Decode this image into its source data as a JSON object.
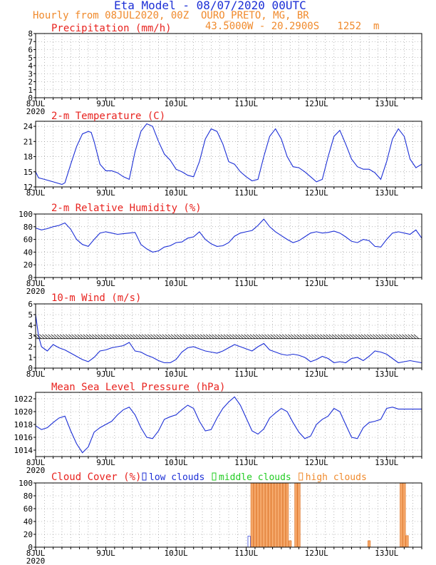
{
  "header": {
    "title": "Eta Model - 08/07/2020 00UTC",
    "line2": "Hourly from 08JUL2020, 00Z  OURO_PRETO, MG, BR",
    "line3": "43.5000W - 20.2900S   1252  m"
  },
  "colors": {
    "title": "#1c2fd6",
    "header_orange": "#f08a2c",
    "panel_title": "#e8231f",
    "series_blue": "#1c2fd6",
    "grid": "#888888",
    "high_clouds": "#f5a86a",
    "high_clouds_edge": "#e07a30",
    "low_clouds": "#1c2fd6",
    "middle_clouds": "#22cc22",
    "axis": "#000000"
  },
  "x_axis": {
    "labels": [
      "8JUL",
      "9JUL",
      "10JUL",
      "11JUL",
      "12JUL",
      "13JUL"
    ],
    "year_label": "2020",
    "range_hours": [
      0,
      132
    ]
  },
  "chart_data": [
    {
      "id": "precipitation",
      "type": "line",
      "title": "Precipitation (mm/h)",
      "ylim": [
        0,
        8
      ],
      "yticks": [
        0,
        1,
        2,
        3,
        4,
        5,
        6,
        7,
        8
      ],
      "series": [
        {
          "name": "Precipitation",
          "x": [
            0,
            132
          ],
          "values": [
            0,
            0
          ]
        }
      ]
    },
    {
      "id": "temperature",
      "type": "line",
      "title": "2-m Temperature (C)",
      "ylim": [
        12,
        25
      ],
      "yticks": [
        12,
        15,
        18,
        21,
        24
      ],
      "series": [
        {
          "name": "Temperature",
          "x": [
            0,
            1,
            3,
            6,
            9,
            10,
            12,
            14,
            16,
            18,
            19,
            20,
            22,
            24,
            26,
            28,
            30,
            32,
            34,
            36,
            38,
            40,
            42,
            44,
            46,
            48,
            50,
            52,
            54,
            56,
            58,
            60,
            62,
            64,
            66,
            68,
            70,
            72,
            74,
            76,
            78,
            80,
            82,
            84,
            86,
            88,
            90,
            92,
            94,
            96,
            98,
            100,
            102,
            104,
            106,
            108,
            110,
            112,
            114,
            116,
            118,
            120,
            122,
            124,
            126,
            128,
            130,
            132
          ],
          "values": [
            15,
            13.8,
            13.5,
            13.0,
            12.5,
            12.8,
            16.5,
            20.0,
            22.5,
            23.0,
            22.8,
            21.0,
            16.5,
            15.2,
            15.2,
            14.8,
            14.0,
            13.5,
            19.0,
            23.0,
            24.5,
            24.0,
            21.0,
            18.5,
            17.3,
            15.5,
            15.0,
            14.3,
            14.0,
            17.0,
            21.5,
            23.5,
            23.0,
            20.5,
            17.0,
            16.5,
            15.0,
            14.0,
            13.2,
            13.5,
            18.0,
            22.0,
            23.5,
            21.5,
            18.0,
            16.0,
            15.8,
            15.0,
            14.0,
            13.0,
            13.5,
            18.0,
            22.0,
            23.2,
            20.5,
            17.5,
            16.0,
            15.5,
            15.5,
            14.8,
            13.5,
            17.0,
            21.5,
            23.5,
            22.0,
            17.5,
            15.8,
            16.5
          ]
        }
      ]
    },
    {
      "id": "humidity",
      "type": "line",
      "title": "2-m Relative Humidity (%)",
      "ylim": [
        0,
        100
      ],
      "yticks": [
        0,
        20,
        40,
        60,
        80,
        100
      ],
      "series": [
        {
          "name": "Relative Humidity",
          "x": [
            0,
            2,
            4,
            6,
            8,
            10,
            12,
            14,
            16,
            18,
            20,
            22,
            24,
            26,
            28,
            30,
            32,
            34,
            36,
            38,
            40,
            42,
            44,
            46,
            48,
            50,
            52,
            54,
            56,
            58,
            60,
            62,
            64,
            66,
            68,
            70,
            72,
            74,
            76,
            78,
            80,
            82,
            84,
            86,
            88,
            90,
            92,
            94,
            96,
            98,
            100,
            102,
            104,
            106,
            108,
            110,
            112,
            114,
            116,
            118,
            120,
            122,
            124,
            126,
            128,
            130,
            132
          ],
          "values": [
            78,
            75,
            77,
            80,
            82,
            86,
            76,
            60,
            52,
            49,
            60,
            70,
            72,
            70,
            68,
            69,
            70,
            71,
            52,
            45,
            40,
            42,
            48,
            50,
            55,
            56,
            62,
            64,
            72,
            60,
            53,
            49,
            50,
            55,
            65,
            70,
            72,
            74,
            82,
            92,
            80,
            72,
            66,
            60,
            55,
            58,
            64,
            70,
            72,
            70,
            71,
            73,
            70,
            64,
            57,
            55,
            60,
            58,
            49,
            48,
            60,
            70,
            72,
            70,
            68,
            75,
            62
          ]
        }
      ]
    },
    {
      "id": "wind",
      "type": "line",
      "title": "10-m Wind (m/s)",
      "ylim": [
        0,
        6
      ],
      "yticks": [
        0,
        1,
        2,
        3,
        4,
        5,
        6
      ],
      "series": [
        {
          "name": "Wind speed",
          "x": [
            0,
            1,
            2,
            4,
            6,
            8,
            10,
            12,
            14,
            16,
            18,
            20,
            22,
            24,
            26,
            28,
            30,
            32,
            34,
            36,
            38,
            40,
            42,
            44,
            46,
            48,
            50,
            52,
            54,
            56,
            58,
            60,
            62,
            64,
            66,
            68,
            70,
            72,
            74,
            76,
            78,
            80,
            82,
            84,
            86,
            88,
            90,
            92,
            94,
            96,
            98,
            100,
            102,
            104,
            106,
            108,
            110,
            112,
            114,
            116,
            118,
            120,
            122,
            124,
            126,
            128,
            130,
            132
          ],
          "values": [
            5.0,
            3.0,
            2.0,
            1.6,
            2.2,
            1.9,
            1.7,
            1.4,
            1.1,
            0.8,
            0.6,
            1.0,
            1.6,
            1.7,
            1.9,
            2.0,
            2.1,
            2.4,
            1.6,
            1.5,
            1.2,
            1.0,
            0.7,
            0.5,
            0.5,
            0.8,
            1.5,
            1.9,
            2.0,
            1.8,
            1.6,
            1.5,
            1.4,
            1.6,
            1.9,
            2.2,
            2.0,
            1.8,
            1.6,
            2.0,
            2.3,
            1.7,
            1.5,
            1.3,
            1.2,
            1.3,
            1.2,
            1.0,
            0.6,
            0.8,
            1.1,
            0.9,
            0.5,
            0.6,
            0.5,
            0.9,
            1.0,
            0.7,
            1.1,
            1.6,
            1.5,
            1.3,
            0.9,
            0.5,
            0.6,
            0.7,
            0.6,
            0.5
          ]
        }
      ],
      "barbs": {
        "baseline": 2.75,
        "interval_hours": 1
      }
    },
    {
      "id": "pressure",
      "type": "line",
      "title": "Mean Sea Level Pressure (hPa)",
      "ylim": [
        1013,
        1023
      ],
      "yticks": [
        1014,
        1016,
        1018,
        1020,
        1022
      ],
      "series": [
        {
          "name": "MSLP",
          "x": [
            0,
            2,
            4,
            6,
            8,
            10,
            12,
            14,
            16,
            18,
            20,
            22,
            24,
            26,
            28,
            30,
            32,
            34,
            36,
            38,
            40,
            42,
            44,
            46,
            48,
            50,
            52,
            54,
            56,
            58,
            60,
            62,
            64,
            66,
            68,
            70,
            72,
            74,
            76,
            78,
            80,
            82,
            84,
            86,
            88,
            90,
            92,
            94,
            96,
            98,
            100,
            102,
            104,
            106,
            108,
            110,
            112,
            114,
            116,
            118,
            120,
            122,
            124,
            126,
            128,
            130,
            132
          ],
          "values": [
            1017.8,
            1017.2,
            1017.5,
            1018.3,
            1019.0,
            1019.3,
            1017.0,
            1015.0,
            1013.6,
            1014.5,
            1016.8,
            1017.5,
            1018.0,
            1018.5,
            1019.5,
            1020.3,
            1020.7,
            1019.5,
            1017.5,
            1016.0,
            1015.8,
            1017.0,
            1018.8,
            1019.2,
            1019.5,
            1020.3,
            1021.0,
            1020.5,
            1018.5,
            1017.0,
            1017.2,
            1019.0,
            1020.5,
            1021.5,
            1022.3,
            1021.0,
            1019.0,
            1017.0,
            1016.5,
            1017.3,
            1019.0,
            1019.8,
            1020.5,
            1020.0,
            1018.3,
            1016.8,
            1015.8,
            1016.2,
            1018.0,
            1018.8,
            1019.3,
            1020.5,
            1020.0,
            1018.0,
            1016.0,
            1015.8,
            1017.5,
            1018.3,
            1018.5,
            1018.8,
            1020.5,
            1020.7,
            1020.4,
            1020.4,
            1020.4,
            1020.4,
            1020.4
          ]
        }
      ]
    },
    {
      "id": "cloud",
      "type": "bar",
      "title": "Cloud Cover (%)",
      "legend": [
        {
          "label": "low clouds",
          "color": "#1c2fd6"
        },
        {
          "label": "middle clouds",
          "color": "#22cc22"
        },
        {
          "label": "high clouds",
          "color": "#f08a2c"
        }
      ],
      "ylim": [
        0,
        100
      ],
      "yticks": [
        0,
        20,
        40,
        60,
        80,
        100
      ],
      "series": [
        {
          "name": "low clouds",
          "bars": [
            [
              73,
              17
            ],
            [
              74,
              17
            ]
          ]
        },
        {
          "name": "middle clouds",
          "bars": []
        },
        {
          "name": "high clouds",
          "bars": [
            [
              74,
              100
            ],
            [
              75,
              100
            ],
            [
              76,
              100
            ],
            [
              77,
              100
            ],
            [
              78,
              100
            ],
            [
              79,
              100
            ],
            [
              80,
              100
            ],
            [
              81,
              100
            ],
            [
              82,
              100
            ],
            [
              83,
              100
            ],
            [
              84,
              100
            ],
            [
              85,
              100
            ],
            [
              86,
              100
            ],
            [
              87,
              10
            ],
            [
              89,
              100
            ],
            [
              90,
              100
            ],
            [
              114,
              10
            ],
            [
              125,
              100
            ],
            [
              126,
              100
            ],
            [
              127,
              18
            ]
          ]
        }
      ]
    }
  ]
}
